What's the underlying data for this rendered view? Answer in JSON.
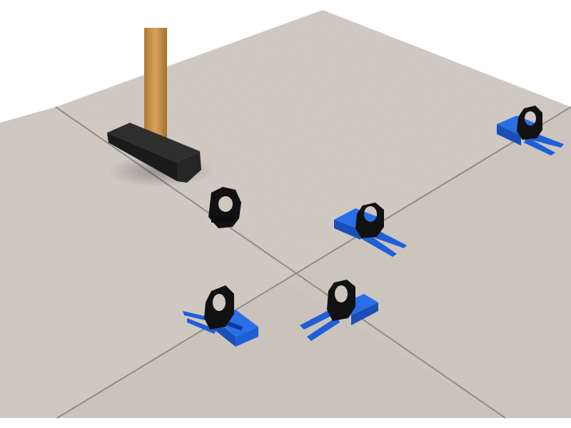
{
  "scene": {
    "background_color": "#ffffff",
    "tile_color": "#d9d3cc",
    "grout_color": "#8f8b86",
    "clip_color": "#111111",
    "wedge_color": "#1e5fd8",
    "wedge_shadow_color": "#0f3a9a",
    "handle_color": "#c9944a",
    "hammer_head_color": "#222222",
    "objects": {
      "hammer": "club-hammer",
      "clips": [
        "leveling-clip",
        "leveling-clip",
        "leveling-clip",
        "leveling-clip",
        "leveling-clip"
      ],
      "wedges": [
        "leveling-wedge",
        "leveling-wedge",
        "leveling-wedge",
        "leveling-wedge"
      ]
    }
  }
}
